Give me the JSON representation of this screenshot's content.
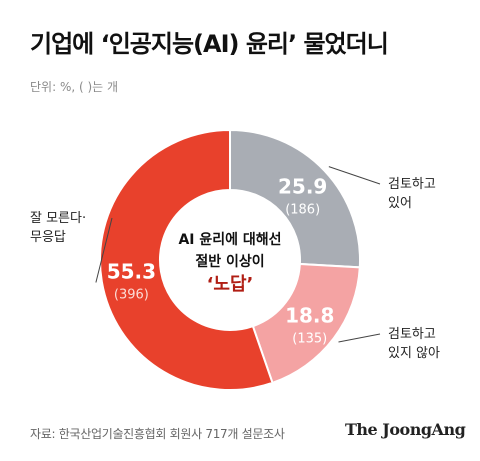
{
  "title": "기업에 ‘인공지능(AI) 윤리’ 물었더니",
  "unit_note": "단위: %, ( )는 개",
  "center_text": {
    "line1": "AI 윤리에 대해선",
    "line2": "절반 이상이",
    "line3": "‘노답’"
  },
  "source": "자료: 한국산업기술진흥협회 회원사 717개 설문조사",
  "brand": "The JoongAng",
  "colors": {
    "red": "#e8412c",
    "gray": "#a9adb4",
    "pink": "#f4a3a3",
    "dark_red": "#b01e14",
    "count_light": "#fbdcd6"
  },
  "chart_data": {
    "type": "pie",
    "donut": true,
    "slices": [
      {
        "label": "검토하고 있어",
        "label_lines": [
          "검토하고",
          "있어"
        ],
        "value": 25.9,
        "value_text": "25.9",
        "count_text": "(186)"
      },
      {
        "label": "검토하고 있지 않아",
        "label_lines": [
          "검토하고",
          "있지 않아"
        ],
        "value": 18.8,
        "value_text": "18.8",
        "count_text": "(135)"
      },
      {
        "label": "잘 모른다 · 무응답",
        "label_lines": [
          "잘 모른다·",
          "무응답"
        ],
        "value": 55.3,
        "value_text": "55.3",
        "count_text": "(396)"
      }
    ]
  }
}
